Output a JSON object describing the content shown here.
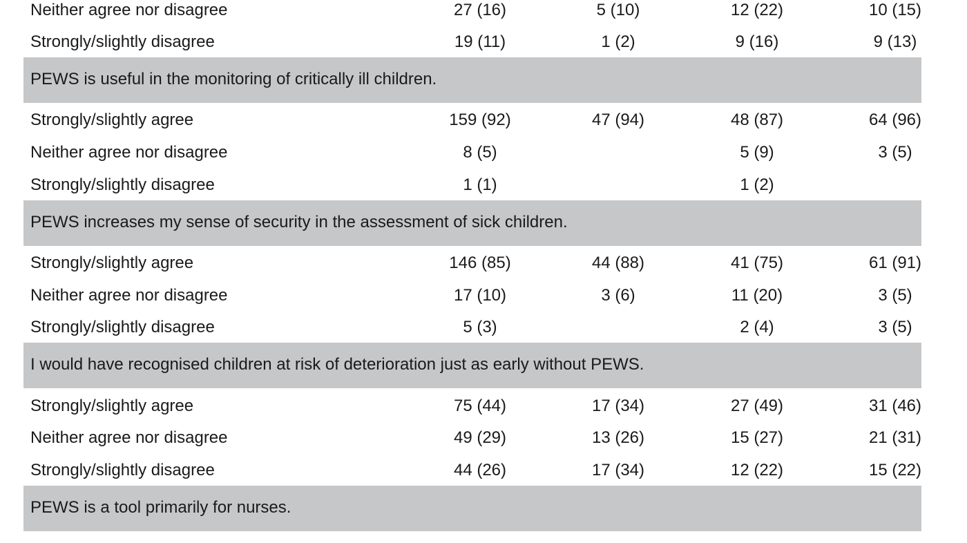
{
  "sections": [
    {
      "rows": [
        {
          "label": "Neither agree nor disagree",
          "values": [
            "27 (16)",
            "5 (10)",
            "12 (22)",
            "10 (15)"
          ]
        },
        {
          "label": "Strongly/slightly disagree",
          "values": [
            "19 (11)",
            "1 (2)",
            "9 (16)",
            "9 (13)"
          ]
        }
      ]
    },
    {
      "statement": "PEWS is useful in the monitoring of critically ill children.",
      "rows": [
        {
          "label": "Strongly/slightly agree",
          "values": [
            "159 (92)",
            "47 (94)",
            "48 (87)",
            "64 (96)"
          ]
        },
        {
          "label": "Neither agree nor disagree",
          "values": [
            "8 (5)",
            "",
            "5 (9)",
            "3 (5)"
          ]
        },
        {
          "label": "Strongly/slightly disagree",
          "values": [
            "1 (1)",
            "",
            "1 (2)",
            ""
          ]
        }
      ]
    },
    {
      "statement": "PEWS increases my sense of security in the assessment of sick children.",
      "rows": [
        {
          "label": "Strongly/slightly agree",
          "values": [
            "146 (85)",
            "44 (88)",
            "41 (75)",
            "61 (91)"
          ]
        },
        {
          "label": "Neither agree nor disagree",
          "values": [
            "17 (10)",
            "3 (6)",
            "11 (20)",
            "3 (5)"
          ]
        },
        {
          "label": "Strongly/slightly disagree",
          "values": [
            "5 (3)",
            "",
            "2 (4)",
            "3 (5)"
          ]
        }
      ]
    },
    {
      "statement": "I would have recognised children at risk of deterioration just as early without PEWS.",
      "rows": [
        {
          "label": "Strongly/slightly agree",
          "values": [
            "75 (44)",
            "17 (34)",
            "27 (49)",
            "31 (46)"
          ]
        },
        {
          "label": "Neither agree nor disagree",
          "values": [
            "49 (29)",
            "13 (26)",
            "15 (27)",
            "21 (31)"
          ]
        },
        {
          "label": "Strongly/slightly disagree",
          "values": [
            "44 (26)",
            "17 (34)",
            "12 (22)",
            "15 (22)"
          ]
        }
      ]
    },
    {
      "statement": "PEWS is a tool primarily for nurses."
    }
  ],
  "colors": {
    "header_band": "#c6c7c9",
    "text": "#1a1a1a",
    "background": "#ffffff"
  }
}
